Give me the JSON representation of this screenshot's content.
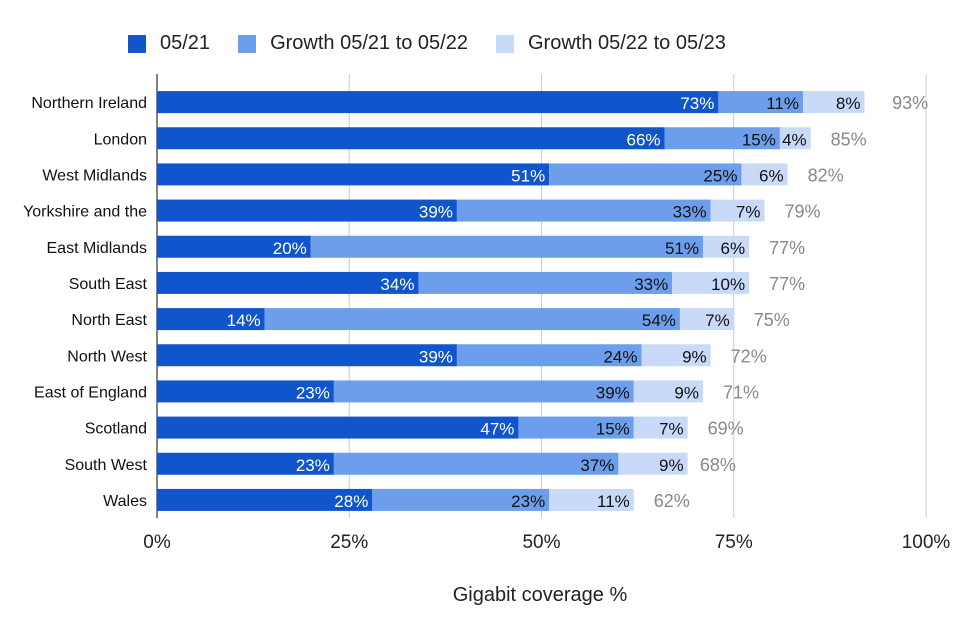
{
  "colors": {
    "base": "#1155cc",
    "growth1": "#6d9eeb",
    "growth2": "#c9daf8",
    "total_label": "#888888",
    "grid": "#cccccc"
  },
  "legend": [
    {
      "label": "05/21",
      "color": "#1155cc"
    },
    {
      "label": "Growth 05/21 to 05/22",
      "color": "#6d9eeb"
    },
    {
      "label": "Growth 05/22 to 05/23",
      "color": "#c9daf8"
    }
  ],
  "chart_data": {
    "type": "bar",
    "orientation": "horizontal",
    "stacked": true,
    "xlabel": "Gigabit coverage %",
    "xlim": [
      0,
      100
    ],
    "xticks": [
      "0%",
      "25%",
      "50%",
      "75%",
      "100%"
    ],
    "grid": "vertical",
    "legend_position": "top",
    "categories": [
      "Northern Ireland",
      "London",
      "West Midlands",
      "Yorkshire and the",
      "East Midlands",
      "South East",
      "North East",
      "North West",
      "East of England",
      "Scotland",
      "South West",
      "Wales"
    ],
    "series": [
      {
        "name": "05/21",
        "values": [
          73,
          66,
          51,
          39,
          20,
          34,
          14,
          39,
          23,
          47,
          23,
          28
        ]
      },
      {
        "name": "Growth 05/21 to 05/22",
        "values": [
          11,
          15,
          25,
          33,
          51,
          33,
          54,
          24,
          39,
          15,
          37,
          23
        ]
      },
      {
        "name": "Growth 05/22 to 05/23",
        "values": [
          8,
          4,
          6,
          7,
          6,
          10,
          7,
          9,
          9,
          7,
          9,
          11
        ]
      }
    ],
    "totals": [
      93,
      85,
      82,
      79,
      77,
      77,
      75,
      72,
      71,
      69,
      68,
      62
    ]
  }
}
